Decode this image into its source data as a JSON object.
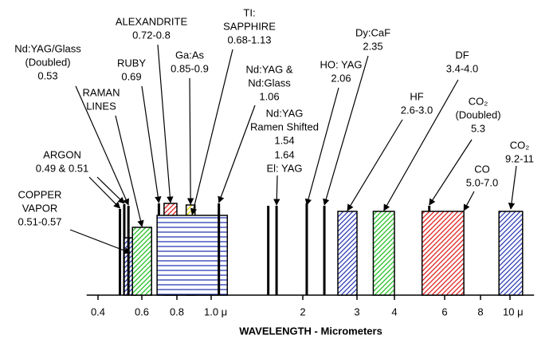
{
  "chart_data": {
    "type": "spectrum",
    "x_label": "WAVELENGTH - Micrometers",
    "log_x": true,
    "xlim": [
      0.36,
      12
    ],
    "xticks": [
      0.4,
      0.6,
      0.8,
      {
        "value": 1,
        "label": "1.0 μ"
      },
      2,
      3,
      4,
      6,
      8,
      {
        "value": 10,
        "label": "10 μ"
      }
    ],
    "lasers": [
      {
        "name": [
          "ARGON"
        ],
        "value_label": "0.49 & 0.51",
        "values": [
          0.49,
          0.51
        ],
        "mark": "line",
        "color": "#000000"
      },
      {
        "name": [
          "COPPER",
          "VAPOR"
        ],
        "value_label": "0.51-0.57",
        "values": [
          0.51,
          0.57
        ],
        "mark": "box",
        "color": "#2b3bb5",
        "pattern": "diagonal"
      },
      {
        "name": [
          "Nd:YAG/Glass",
          "(Doubled)"
        ],
        "value_label": "0.53",
        "values": [
          0.53
        ],
        "mark": "line",
        "color": "#000000"
      },
      {
        "name": [
          "RAMAN",
          "LINES"
        ],
        "values": [
          0.55,
          0.65
        ],
        "mark": "box",
        "color": "#22c022",
        "pattern": "diagonal"
      },
      {
        "name": [
          "RUBY"
        ],
        "value_label": "0.69",
        "values": [
          0.69
        ],
        "mark": "line",
        "color": "#000000"
      },
      {
        "name": [
          "ALEXANDRITE"
        ],
        "value_label": "0.72-0.8",
        "values": [
          0.72,
          0.8
        ],
        "mark": "box",
        "color": "#e02020",
        "pattern": "diagonal"
      },
      {
        "name": [
          "Ga:As"
        ],
        "value_label": "0.85-0.9",
        "values": [
          0.85,
          0.9
        ],
        "mark": "box",
        "color": "#e8d800",
        "pattern": "diagonal"
      },
      {
        "name": [
          "TI:",
          "SAPPHIRE"
        ],
        "value_label": "0.68-1.13",
        "values": [
          0.68,
          1.13
        ],
        "mark": "box",
        "color": "#2b3bb5",
        "pattern": "horizontal"
      },
      {
        "name": [
          "Nd:YAG &",
          "Nd:Glass"
        ],
        "value_label": "1.06",
        "values": [
          1.06
        ],
        "mark": "line",
        "color": "#000000"
      },
      {
        "name": [
          "Nd:YAG",
          "Ramen Shifted"
        ],
        "value_label": "1.54",
        "values": [
          1.54
        ],
        "mark": "line",
        "color": "#000000"
      },
      {
        "name": [
          "El: YAG"
        ],
        "value_label": "1.64",
        "values": [
          1.64
        ],
        "mark": "line",
        "color": "#000000"
      },
      {
        "name": [
          "HO: YAG"
        ],
        "value_label": "2.06",
        "values": [
          2.06
        ],
        "mark": "line",
        "color": "#000000"
      },
      {
        "name": [
          "Dy:CaF"
        ],
        "value_label": "2.35",
        "values": [
          2.35
        ],
        "mark": "line",
        "color": "#000000"
      },
      {
        "name": [
          "HF"
        ],
        "value_label": "2.6-3.0",
        "values": [
          2.6,
          3.0
        ],
        "mark": "box",
        "color": "#2b3bb5",
        "pattern": "diagonal"
      },
      {
        "name": [
          "DF"
        ],
        "value_label": "3.4-4.0",
        "values": [
          3.4,
          4.0
        ],
        "mark": "box",
        "color": "#22c022",
        "pattern": "diagonal"
      },
      {
        "name": [
          "CO₂",
          "(Doubled)"
        ],
        "value_label": "5.3",
        "values": [
          5.3
        ],
        "mark": "line",
        "color": "#000000"
      },
      {
        "name": [
          "CO"
        ],
        "value_label": "5.0-7.0",
        "values": [
          5.0,
          7.0
        ],
        "mark": "box",
        "color": "#e02020",
        "pattern": "diagonal"
      },
      {
        "name": [
          "CO₂"
        ],
        "value_label": "9.2-11",
        "values": [
          9.2,
          11
        ],
        "mark": "box",
        "color": "#2b3bb5",
        "pattern": "diagonal"
      }
    ]
  }
}
